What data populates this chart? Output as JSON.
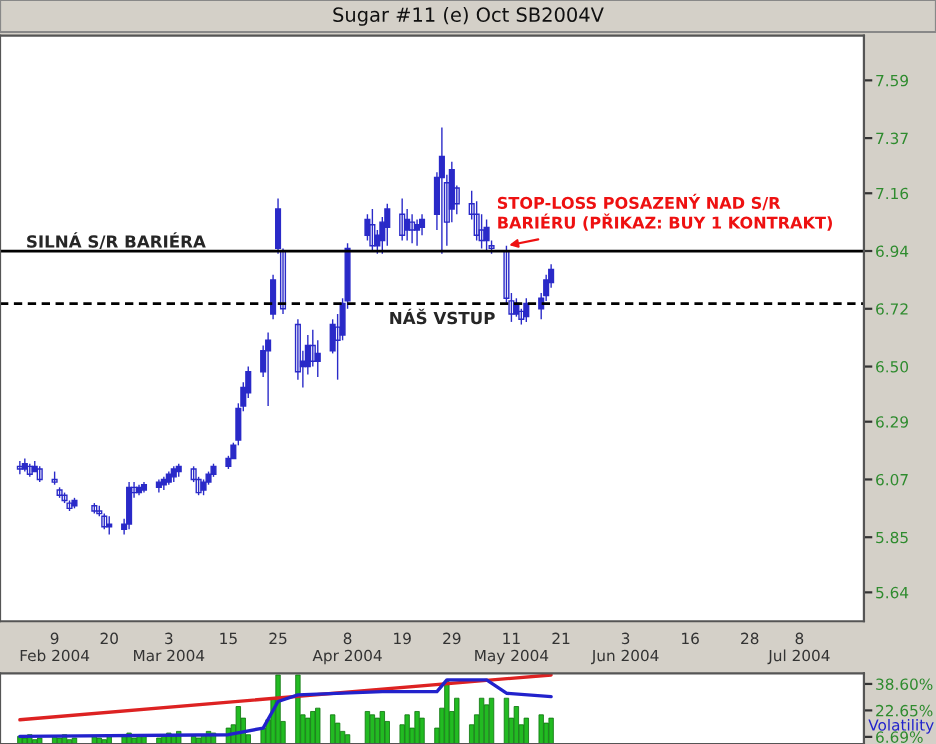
{
  "chart_data": [
    {
      "type": "candlestick",
      "title": "Sugar #11 (e) Oct SB2004V",
      "color": "#2a2ac8",
      "x": [
        "2004-02-02",
        "2004-02-03",
        "2004-02-04",
        "2004-02-05",
        "2004-02-06",
        "2004-02-09",
        "2004-02-10",
        "2004-02-11",
        "2004-02-12",
        "2004-02-13",
        "2004-02-17",
        "2004-02-18",
        "2004-02-19",
        "2004-02-20",
        "2004-02-23",
        "2004-02-24",
        "2004-02-25",
        "2004-02-26",
        "2004-02-27",
        "2004-03-01",
        "2004-03-02",
        "2004-03-03",
        "2004-03-04",
        "2004-03-05",
        "2004-03-08",
        "2004-03-09",
        "2004-03-10",
        "2004-03-11",
        "2004-03-12",
        "2004-03-15",
        "2004-03-16",
        "2004-03-17",
        "2004-03-18",
        "2004-03-19",
        "2004-03-22",
        "2004-03-23",
        "2004-03-24",
        "2004-03-25",
        "2004-03-26",
        "2004-03-29",
        "2004-03-30",
        "2004-03-31",
        "2004-04-01",
        "2004-04-02",
        "2004-04-05",
        "2004-04-06",
        "2004-04-07",
        "2004-04-08",
        "2004-04-12",
        "2004-04-13",
        "2004-04-14",
        "2004-04-15",
        "2004-04-16",
        "2004-04-19",
        "2004-04-20",
        "2004-04-21",
        "2004-04-22",
        "2004-04-23",
        "2004-04-26",
        "2004-04-27",
        "2004-04-28",
        "2004-04-29",
        "2004-04-30",
        "2004-05-03",
        "2004-05-04",
        "2004-05-05",
        "2004-05-06",
        "2004-05-07",
        "2004-05-10",
        "2004-05-11",
        "2004-05-12",
        "2004-05-13",
        "2004-05-14",
        "2004-05-17",
        "2004-05-18",
        "2004-05-19"
      ],
      "ohlc": [
        [
          6.12,
          6.14,
          6.09,
          6.11
        ],
        [
          6.11,
          6.15,
          6.1,
          6.13
        ],
        [
          6.12,
          6.13,
          6.08,
          6.09
        ],
        [
          6.1,
          6.14,
          6.1,
          6.12
        ],
        [
          6.11,
          6.12,
          6.06,
          6.07
        ],
        [
          6.07,
          6.1,
          6.05,
          6.06
        ],
        [
          6.03,
          6.04,
          6.0,
          6.01
        ],
        [
          6.01,
          6.02,
          5.98,
          5.99
        ],
        [
          5.98,
          5.99,
          5.95,
          5.96
        ],
        [
          5.97,
          6.0,
          5.96,
          5.99
        ],
        [
          5.97,
          5.98,
          5.94,
          5.95
        ],
        [
          5.95,
          5.97,
          5.93,
          5.94
        ],
        [
          5.93,
          5.94,
          5.88,
          5.89
        ],
        [
          5.89,
          5.93,
          5.86,
          5.9
        ],
        [
          5.88,
          5.92,
          5.86,
          5.9
        ],
        [
          5.9,
          6.06,
          5.88,
          6.04
        ],
        [
          6.04,
          6.06,
          6.0,
          6.02
        ],
        [
          6.02,
          6.05,
          6.01,
          6.04
        ],
        [
          6.03,
          6.06,
          6.02,
          6.05
        ],
        [
          6.04,
          6.07,
          6.02,
          6.06
        ],
        [
          6.05,
          6.08,
          6.03,
          6.07
        ],
        [
          6.06,
          6.1,
          6.05,
          6.09
        ],
        [
          6.08,
          6.12,
          6.06,
          6.11
        ],
        [
          6.1,
          6.13,
          6.08,
          6.12
        ],
        [
          6.11,
          6.12,
          6.06,
          6.07
        ],
        [
          6.07,
          6.08,
          6.01,
          6.02
        ],
        [
          6.03,
          6.07,
          6.01,
          6.06
        ],
        [
          6.06,
          6.1,
          6.05,
          6.09
        ],
        [
          6.09,
          6.13,
          6.08,
          6.12
        ],
        [
          6.12,
          6.16,
          6.11,
          6.15
        ],
        [
          6.15,
          6.21,
          6.15,
          6.2
        ],
        [
          6.22,
          6.36,
          6.2,
          6.34
        ],
        [
          6.35,
          6.44,
          6.33,
          6.42
        ],
        [
          6.4,
          6.5,
          6.38,
          6.48
        ],
        [
          6.48,
          6.58,
          6.46,
          6.56
        ],
        [
          6.56,
          6.63,
          6.35,
          6.6
        ],
        [
          6.7,
          6.85,
          6.68,
          6.83
        ],
        [
          6.95,
          7.14,
          6.93,
          7.1
        ],
        [
          6.94,
          6.95,
          6.7,
          6.72
        ],
        [
          6.66,
          6.68,
          6.45,
          6.48
        ],
        [
          6.5,
          6.56,
          6.42,
          6.52
        ],
        [
          6.5,
          6.62,
          6.47,
          6.58
        ],
        [
          6.58,
          6.64,
          6.5,
          6.52
        ],
        [
          6.52,
          6.6,
          6.46,
          6.55
        ],
        [
          6.56,
          6.68,
          6.55,
          6.66
        ],
        [
          6.65,
          6.7,
          6.45,
          6.6
        ],
        [
          6.62,
          6.76,
          6.6,
          6.74
        ],
        [
          6.75,
          6.97,
          6.72,
          6.95
        ],
        [
          7.0,
          7.08,
          6.98,
          7.06
        ],
        [
          7.04,
          7.1,
          6.94,
          6.96
        ],
        [
          6.96,
          7.02,
          6.93,
          7.0
        ],
        [
          6.98,
          7.07,
          6.93,
          7.05
        ],
        [
          7.03,
          7.12,
          6.96,
          7.1
        ],
        [
          7.08,
          7.14,
          6.98,
          7.0
        ],
        [
          7.02,
          7.1,
          6.98,
          7.06
        ],
        [
          7.05,
          7.08,
          6.97,
          7.02
        ],
        [
          7.02,
          7.06,
          6.96,
          7.04
        ],
        [
          7.03,
          7.08,
          7.0,
          7.06
        ],
        [
          7.08,
          7.24,
          7.02,
          7.22
        ],
        [
          7.22,
          7.41,
          6.93,
          7.3
        ],
        [
          7.2,
          7.23,
          6.96,
          7.05
        ],
        [
          7.1,
          7.28,
          7.05,
          7.25
        ],
        [
          7.18,
          7.19,
          7.08,
          7.12
        ],
        [
          7.12,
          7.17,
          7.06,
          7.08
        ],
        [
          7.08,
          7.13,
          6.98,
          7.0
        ],
        [
          7.02,
          7.08,
          6.95,
          6.98
        ],
        [
          6.98,
          7.06,
          6.94,
          7.03
        ],
        [
          6.96,
          6.98,
          6.93,
          6.95
        ],
        [
          6.94,
          6.96,
          6.74,
          6.76
        ],
        [
          6.75,
          6.78,
          6.67,
          6.7
        ],
        [
          6.7,
          6.76,
          6.69,
          6.74
        ],
        [
          6.71,
          6.72,
          6.66,
          6.68
        ],
        [
          6.69,
          6.76,
          6.67,
          6.74
        ],
        [
          6.72,
          6.78,
          6.68,
          6.76
        ],
        [
          6.77,
          6.85,
          6.75,
          6.83
        ],
        [
          6.82,
          6.89,
          6.8,
          6.87
        ]
      ],
      "xlim": [
        "2004-01-29",
        "2004-07-21"
      ],
      "xticks": [
        {
          "value": "2004-02-09",
          "label": "9\nFeb 2004"
        },
        {
          "value": "2004-02-20",
          "label": "20"
        },
        {
          "value": "2004-03-03",
          "label": "3\nMar 2004"
        },
        {
          "value": "2004-03-15",
          "label": "15"
        },
        {
          "value": "2004-03-25",
          "label": "25"
        },
        {
          "value": "2004-04-08",
          "label": "8\nApr 2004"
        },
        {
          "value": "2004-04-19",
          "label": "19"
        },
        {
          "value": "2004-04-29",
          "label": "29"
        },
        {
          "value": "2004-05-11",
          "label": "11\nMay 2004"
        },
        {
          "value": "2004-05-21",
          "label": "21"
        },
        {
          "value": "2004-06-03",
          "label": "3\nJun 2004"
        },
        {
          "value": "2004-06-16",
          "label": "16"
        },
        {
          "value": "2004-06-28",
          "label": "28"
        },
        {
          "value": "2004-07-08",
          "label": "8\nJul 2004"
        }
      ],
      "ylim": [
        5.53,
        7.76
      ],
      "yticks": [
        7.59,
        7.37,
        7.16,
        6.94,
        6.72,
        {
          "value": 6.5,
          "label": "6.50"
        },
        6.29,
        6.07,
        5.85,
        5.64
      ],
      "ref_lines": [
        {
          "axis": "y",
          "value": 6.94,
          "label": "SILNÁ S/R BARIÉRA",
          "color": "#000000",
          "line_style": "solid"
        },
        {
          "axis": "y",
          "value": 6.74,
          "label": "NÁŠ VSTUP",
          "color": "#000000",
          "line_style": "dashed"
        }
      ],
      "annotations": [
        {
          "text": "STOP-LOSS POSAZENÝ NAD S/R\nBARIÉRU (PŘIKAZ: BUY 1 KONTRAKT)",
          "x": "2004-05-10",
          "y": 6.96
        }
      ],
      "grid": false
    },
    {
      "type": "bar",
      "tick_labels": "y",
      "x": [
        "2004-02-02",
        "2004-02-03",
        "2004-02-04",
        "2004-02-05",
        "2004-02-06",
        "2004-02-09",
        "2004-02-10",
        "2004-02-11",
        "2004-02-12",
        "2004-02-13",
        "2004-02-17",
        "2004-02-18",
        "2004-02-19",
        "2004-02-20",
        "2004-02-23",
        "2004-02-24",
        "2004-02-25",
        "2004-02-26",
        "2004-02-27",
        "2004-03-01",
        "2004-03-02",
        "2004-03-03",
        "2004-03-04",
        "2004-03-05",
        "2004-03-08",
        "2004-03-09",
        "2004-03-10",
        "2004-03-11",
        "2004-03-12",
        "2004-03-15",
        "2004-03-16",
        "2004-03-17",
        "2004-03-18",
        "2004-03-19",
        "2004-03-22",
        "2004-03-23",
        "2004-03-24",
        "2004-03-25",
        "2004-03-26",
        "2004-03-29",
        "2004-03-30",
        "2004-03-31",
        "2004-04-01",
        "2004-04-02",
        "2004-04-05",
        "2004-04-06",
        "2004-04-07",
        "2004-04-08",
        "2004-04-12",
        "2004-04-13",
        "2004-04-14",
        "2004-04-15",
        "2004-04-16",
        "2004-04-19",
        "2004-04-20",
        "2004-04-21",
        "2004-04-22",
        "2004-04-23",
        "2004-04-26",
        "2004-04-27",
        "2004-04-28",
        "2004-04-29",
        "2004-04-30",
        "2004-05-03",
        "2004-05-04",
        "2004-05-05",
        "2004-05-06",
        "2004-05-07",
        "2004-05-10",
        "2004-05-11",
        "2004-05-12",
        "2004-05-13",
        "2004-05-14",
        "2004-05-17",
        "2004-05-18",
        "2004-05-19"
      ],
      "series": [
        {
          "type": "bar",
          "color": "#22bb22",
          "values": [
            7,
            6,
            8,
            5,
            6,
            7,
            6,
            8,
            5,
            6,
            7,
            6,
            5,
            8,
            7,
            9,
            6,
            7,
            8,
            6,
            7,
            9,
            8,
            10,
            7,
            6,
            8,
            10,
            9,
            12,
            14,
            25,
            18,
            8,
            12,
            17,
            30,
            44,
            16,
            44,
            20,
            18,
            22,
            24,
            20,
            15,
            10,
            8,
            22,
            20,
            18,
            22,
            16,
            14,
            20,
            12,
            22,
            18,
            12,
            24,
            40,
            22,
            30,
            14,
            20,
            30,
            26,
            30,
            30,
            18,
            25,
            14,
            18,
            20,
            15,
            18
          ]
        },
        {
          "type": "line",
          "color": "#dd2222",
          "x": [
            "2004-02-02",
            "2004-05-19"
          ],
          "values": [
            17,
            44
          ]
        },
        {
          "type": "line",
          "name": "Volatility",
          "color": "#2222cc",
          "x": [
            "2004-02-02",
            "2004-03-15",
            "2004-03-22",
            "2004-03-25",
            "2004-03-29",
            "2004-04-15",
            "2004-04-26",
            "2004-04-28",
            "2004-05-06",
            "2004-05-10",
            "2004-05-19"
          ],
          "values": [
            7,
            8,
            12,
            28,
            32,
            34,
            34,
            41,
            41,
            33,
            31
          ]
        }
      ],
      "xlim": [
        "2004-01-29",
        "2004-07-21"
      ],
      "ylim": [
        2.4,
        45
      ],
      "yticks": [
        {
          "value": 38.6,
          "label": "38.60%"
        },
        {
          "value": 22.65,
          "label": "22.65%"
        },
        {
          "value": 6.69,
          "label": "6.69%"
        }
      ],
      "grid": false
    }
  ]
}
